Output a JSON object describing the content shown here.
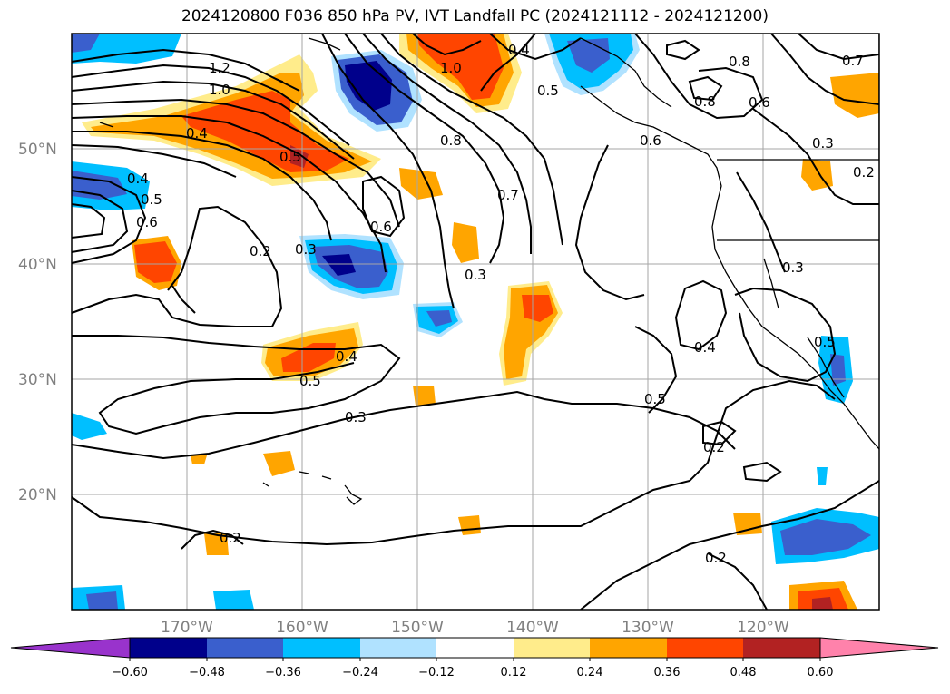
{
  "title": "2024120800 F036 850 hPa PV, IVT Landfall PC (2024121112 - 2024121200)",
  "lat_labels": [
    "50°N",
    "40°N",
    "30°N",
    "20°N"
  ],
  "lon_labels": [
    "170°W",
    "160°W",
    "150°W",
    "140°W",
    "130°W",
    "120°W"
  ],
  "colorbar": {
    "ticks": [
      "−0.60",
      "−0.48",
      "−0.36",
      "−0.24",
      "−0.12",
      "0.12",
      "0.24",
      "0.36",
      "0.48",
      "0.60"
    ],
    "colors": [
      "#9933cc",
      "#00008b",
      "#3a5fcd",
      "#00bfff",
      "#b0e2ff",
      "#ffffff",
      "#ffec8b",
      "#ffa500",
      "#ff4500",
      "#b22222",
      "#ff82ab"
    ]
  },
  "contour_labels": [
    "1.2",
    "1.0",
    "0.4",
    "0.5",
    "0.4",
    "0.6",
    "0.5",
    "0.8",
    "0.7",
    "0.6",
    "0.3",
    "0.2",
    "0.3",
    "0.4",
    "0.5",
    "0.3",
    "0.5",
    "0.4",
    "0.2",
    "0.2",
    "1.0",
    "0.4",
    "0.5",
    "0.6",
    "0.8",
    "0.8",
    "0.7",
    "0.6",
    "0.3",
    "0.2",
    "0.3",
    "0.2",
    "0.5"
  ]
}
